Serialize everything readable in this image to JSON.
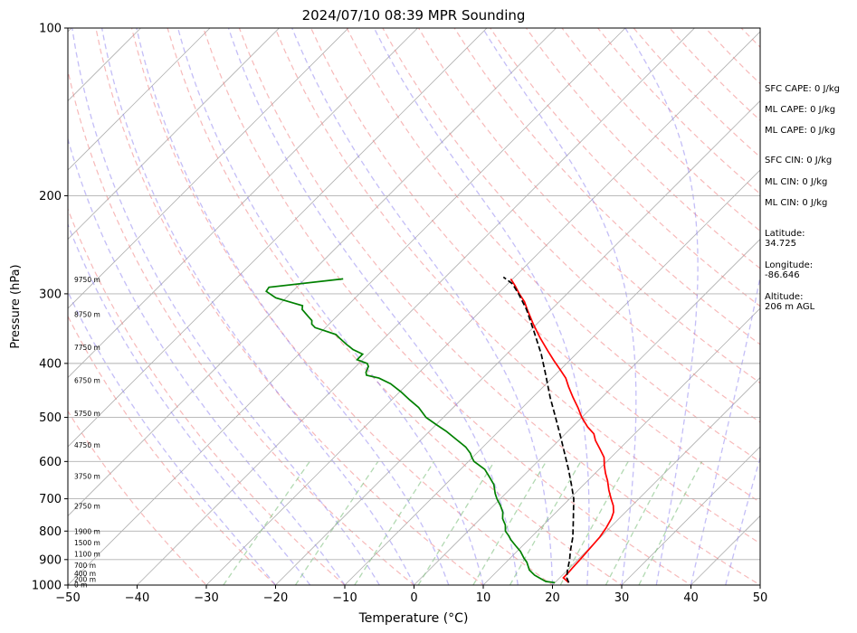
{
  "chart_data": {
    "type": "line",
    "subtype": "skew-t log-p sounding",
    "title": "2024/07/10 08:39 MPR Sounding",
    "xlabel": "Temperature (°C)",
    "ylabel": "Pressure (hPa)",
    "xlim": [
      -50,
      50
    ],
    "ylim": [
      1000,
      100
    ],
    "y_scale": "log",
    "x_ticks": [
      "−50",
      "−40",
      "−30",
      "−20",
      "−10",
      "0",
      "10",
      "20",
      "30",
      "40",
      "50"
    ],
    "y_ticks": [
      1000,
      900,
      800,
      700,
      600,
      500,
      400,
      300,
      200,
      100
    ],
    "grid": true,
    "background_lines": {
      "isotherms": "gray solid",
      "dry_adiabats": "red dashed",
      "moist_adiabats": "blue dashed",
      "mixing_ratio": "green dashed"
    },
    "colors": {
      "temperature": "#ff0000",
      "dewpoint": "#008000",
      "parcel": "#000000",
      "isotherm": "#b0b0b0",
      "dry_adiabat": "#f08080",
      "moist_adiabat": "#8a7df0",
      "mixing_ratio": "#7ec07e"
    },
    "series": [
      {
        "key": "temperature",
        "style": "solid",
        "points": [
          [
            22.0,
            990
          ],
          [
            20.5,
            970
          ],
          [
            20.5,
            950
          ],
          [
            20.4,
            930
          ],
          [
            20.3,
            900
          ],
          [
            20.1,
            860
          ],
          [
            19.9,
            820
          ],
          [
            19.5,
            790
          ],
          [
            18.9,
            760
          ],
          [
            18.3,
            740
          ],
          [
            17.3,
            720
          ],
          [
            16.0,
            700
          ],
          [
            14.4,
            675
          ],
          [
            12.9,
            650
          ],
          [
            11.5,
            630
          ],
          [
            10.2,
            610
          ],
          [
            9.0,
            590
          ],
          [
            7.2,
            570
          ],
          [
            5.3,
            550
          ],
          [
            4.1,
            535
          ],
          [
            2.2,
            520
          ],
          [
            0.0,
            500
          ],
          [
            -2.0,
            480
          ],
          [
            -4.2,
            460
          ],
          [
            -6.4,
            440
          ],
          [
            -8.0,
            425
          ],
          [
            -10.1,
            410
          ],
          [
            -12.3,
            395
          ],
          [
            -14.5,
            380
          ],
          [
            -17.5,
            360
          ],
          [
            -20.5,
            340
          ],
          [
            -23.5,
            320
          ],
          [
            -25.0,
            310
          ],
          [
            -26.9,
            300
          ],
          [
            -28.7,
            290
          ],
          [
            -30.3,
            282
          ]
        ]
      },
      {
        "key": "dewpoint",
        "style": "solid",
        "points": [
          [
            20.0,
            990
          ],
          [
            18.5,
            985
          ],
          [
            17.5,
            975
          ],
          [
            16.0,
            960
          ],
          [
            14.5,
            940
          ],
          [
            13.0,
            910
          ],
          [
            12.0,
            895
          ],
          [
            10.5,
            870
          ],
          [
            9.0,
            850
          ],
          [
            7.5,
            830
          ],
          [
            6.5,
            815
          ],
          [
            5.4,
            800
          ],
          [
            4.5,
            780
          ],
          [
            3.2,
            760
          ],
          [
            2.3,
            740
          ],
          [
            1.0,
            720
          ],
          [
            -0.5,
            700
          ],
          [
            -1.5,
            685
          ],
          [
            -3.0,
            660
          ],
          [
            -4.7,
            640
          ],
          [
            -6.5,
            620
          ],
          [
            -8.5,
            605
          ],
          [
            -9.2,
            600
          ],
          [
            -10.1,
            590
          ],
          [
            -10.9,
            580
          ],
          [
            -12.5,
            565
          ],
          [
            -14.6,
            550
          ],
          [
            -17.5,
            530
          ],
          [
            -20.0,
            515
          ],
          [
            -22.5,
            500
          ],
          [
            -25.0,
            480
          ],
          [
            -27.4,
            465
          ],
          [
            -29.8,
            450
          ],
          [
            -32.5,
            435
          ],
          [
            -35.0,
            425
          ],
          [
            -37.2,
            420
          ],
          [
            -37.7,
            415
          ],
          [
            -38.2,
            405
          ],
          [
            -38.8,
            400
          ],
          [
            -40.8,
            394
          ],
          [
            -40.8,
            385
          ],
          [
            -42.8,
            378
          ],
          [
            -44.5,
            370
          ],
          [
            -46.5,
            360
          ],
          [
            -47.5,
            355
          ],
          [
            -49.5,
            350
          ],
          [
            -51.5,
            345
          ],
          [
            -52.5,
            340
          ],
          [
            -53.0,
            335
          ],
          [
            -54.0,
            330
          ],
          [
            -56.0,
            320
          ],
          [
            -56.5,
            315
          ],
          [
            -58.0,
            312
          ],
          [
            -61.5,
            305
          ],
          [
            -63.8,
            297
          ],
          [
            -64.0,
            292
          ],
          [
            -54.5,
            282
          ]
        ]
      },
      {
        "key": "parcel",
        "style": "dashed",
        "points": [
          [
            22.0,
            990
          ],
          [
            21.0,
            970
          ],
          [
            20.0,
            940
          ],
          [
            18.8,
            900
          ],
          [
            17.7,
            870
          ],
          [
            16.0,
            820
          ],
          [
            14.3,
            780
          ],
          [
            12.5,
            740
          ],
          [
            10.6,
            700
          ],
          [
            8.2,
            660
          ],
          [
            5.6,
            620
          ],
          [
            2.7,
            580
          ],
          [
            -0.4,
            540
          ],
          [
            -3.8,
            500
          ],
          [
            -7.5,
            460
          ],
          [
            -11.3,
            420
          ],
          [
            -15.0,
            385
          ],
          [
            -19.4,
            350
          ],
          [
            -23.6,
            320
          ],
          [
            -27.0,
            300
          ],
          [
            -29.3,
            288
          ],
          [
            -31.6,
            280
          ]
        ]
      }
    ],
    "height_labels": [
      {
        "text": "0 m",
        "p": 1000
      },
      {
        "text": "200 m",
        "p": 978
      },
      {
        "text": "400 m",
        "p": 955
      },
      {
        "text": "700 m",
        "p": 922
      },
      {
        "text": "1100 m",
        "p": 880
      },
      {
        "text": "1500 m",
        "p": 840
      },
      {
        "text": "1900 m",
        "p": 802
      },
      {
        "text": "2750 m",
        "p": 723
      },
      {
        "text": "3750 m",
        "p": 638
      },
      {
        "text": "4750 m",
        "p": 561
      },
      {
        "text": "5750 m",
        "p": 492
      },
      {
        "text": "6750 m",
        "p": 430
      },
      {
        "text": "7750 m",
        "p": 375
      },
      {
        "text": "8750 m",
        "p": 327
      },
      {
        "text": "9750 m",
        "p": 283
      }
    ]
  },
  "side_panel": [
    {
      "key": "sfc_cape",
      "text": "SFC CAPE: 0 J/kg"
    },
    {
      "key": "ml_cape_1",
      "text": "ML CAPE: 0 J/kg"
    },
    {
      "key": "ml_cape_2",
      "text": "ML CAPE: 0 J/kg"
    },
    {
      "key": "sfc_cin",
      "text": "SFC CIN: 0 J/kg"
    },
    {
      "key": "ml_cin_1",
      "text": "ML CIN: 0 J/kg"
    },
    {
      "key": "ml_cin_2",
      "text": "ML CIN: 0 J/kg"
    },
    {
      "key": "latitude_label",
      "text": "Latitude:"
    },
    {
      "key": "latitude_value",
      "text": "34.725"
    },
    {
      "key": "longitude_label",
      "text": "Longitude:"
    },
    {
      "key": "longitude_value",
      "text": "-86.646"
    },
    {
      "key": "altitude_label",
      "text": "Altitude:"
    },
    {
      "key": "altitude_value",
      "text": "206 m AGL"
    }
  ]
}
